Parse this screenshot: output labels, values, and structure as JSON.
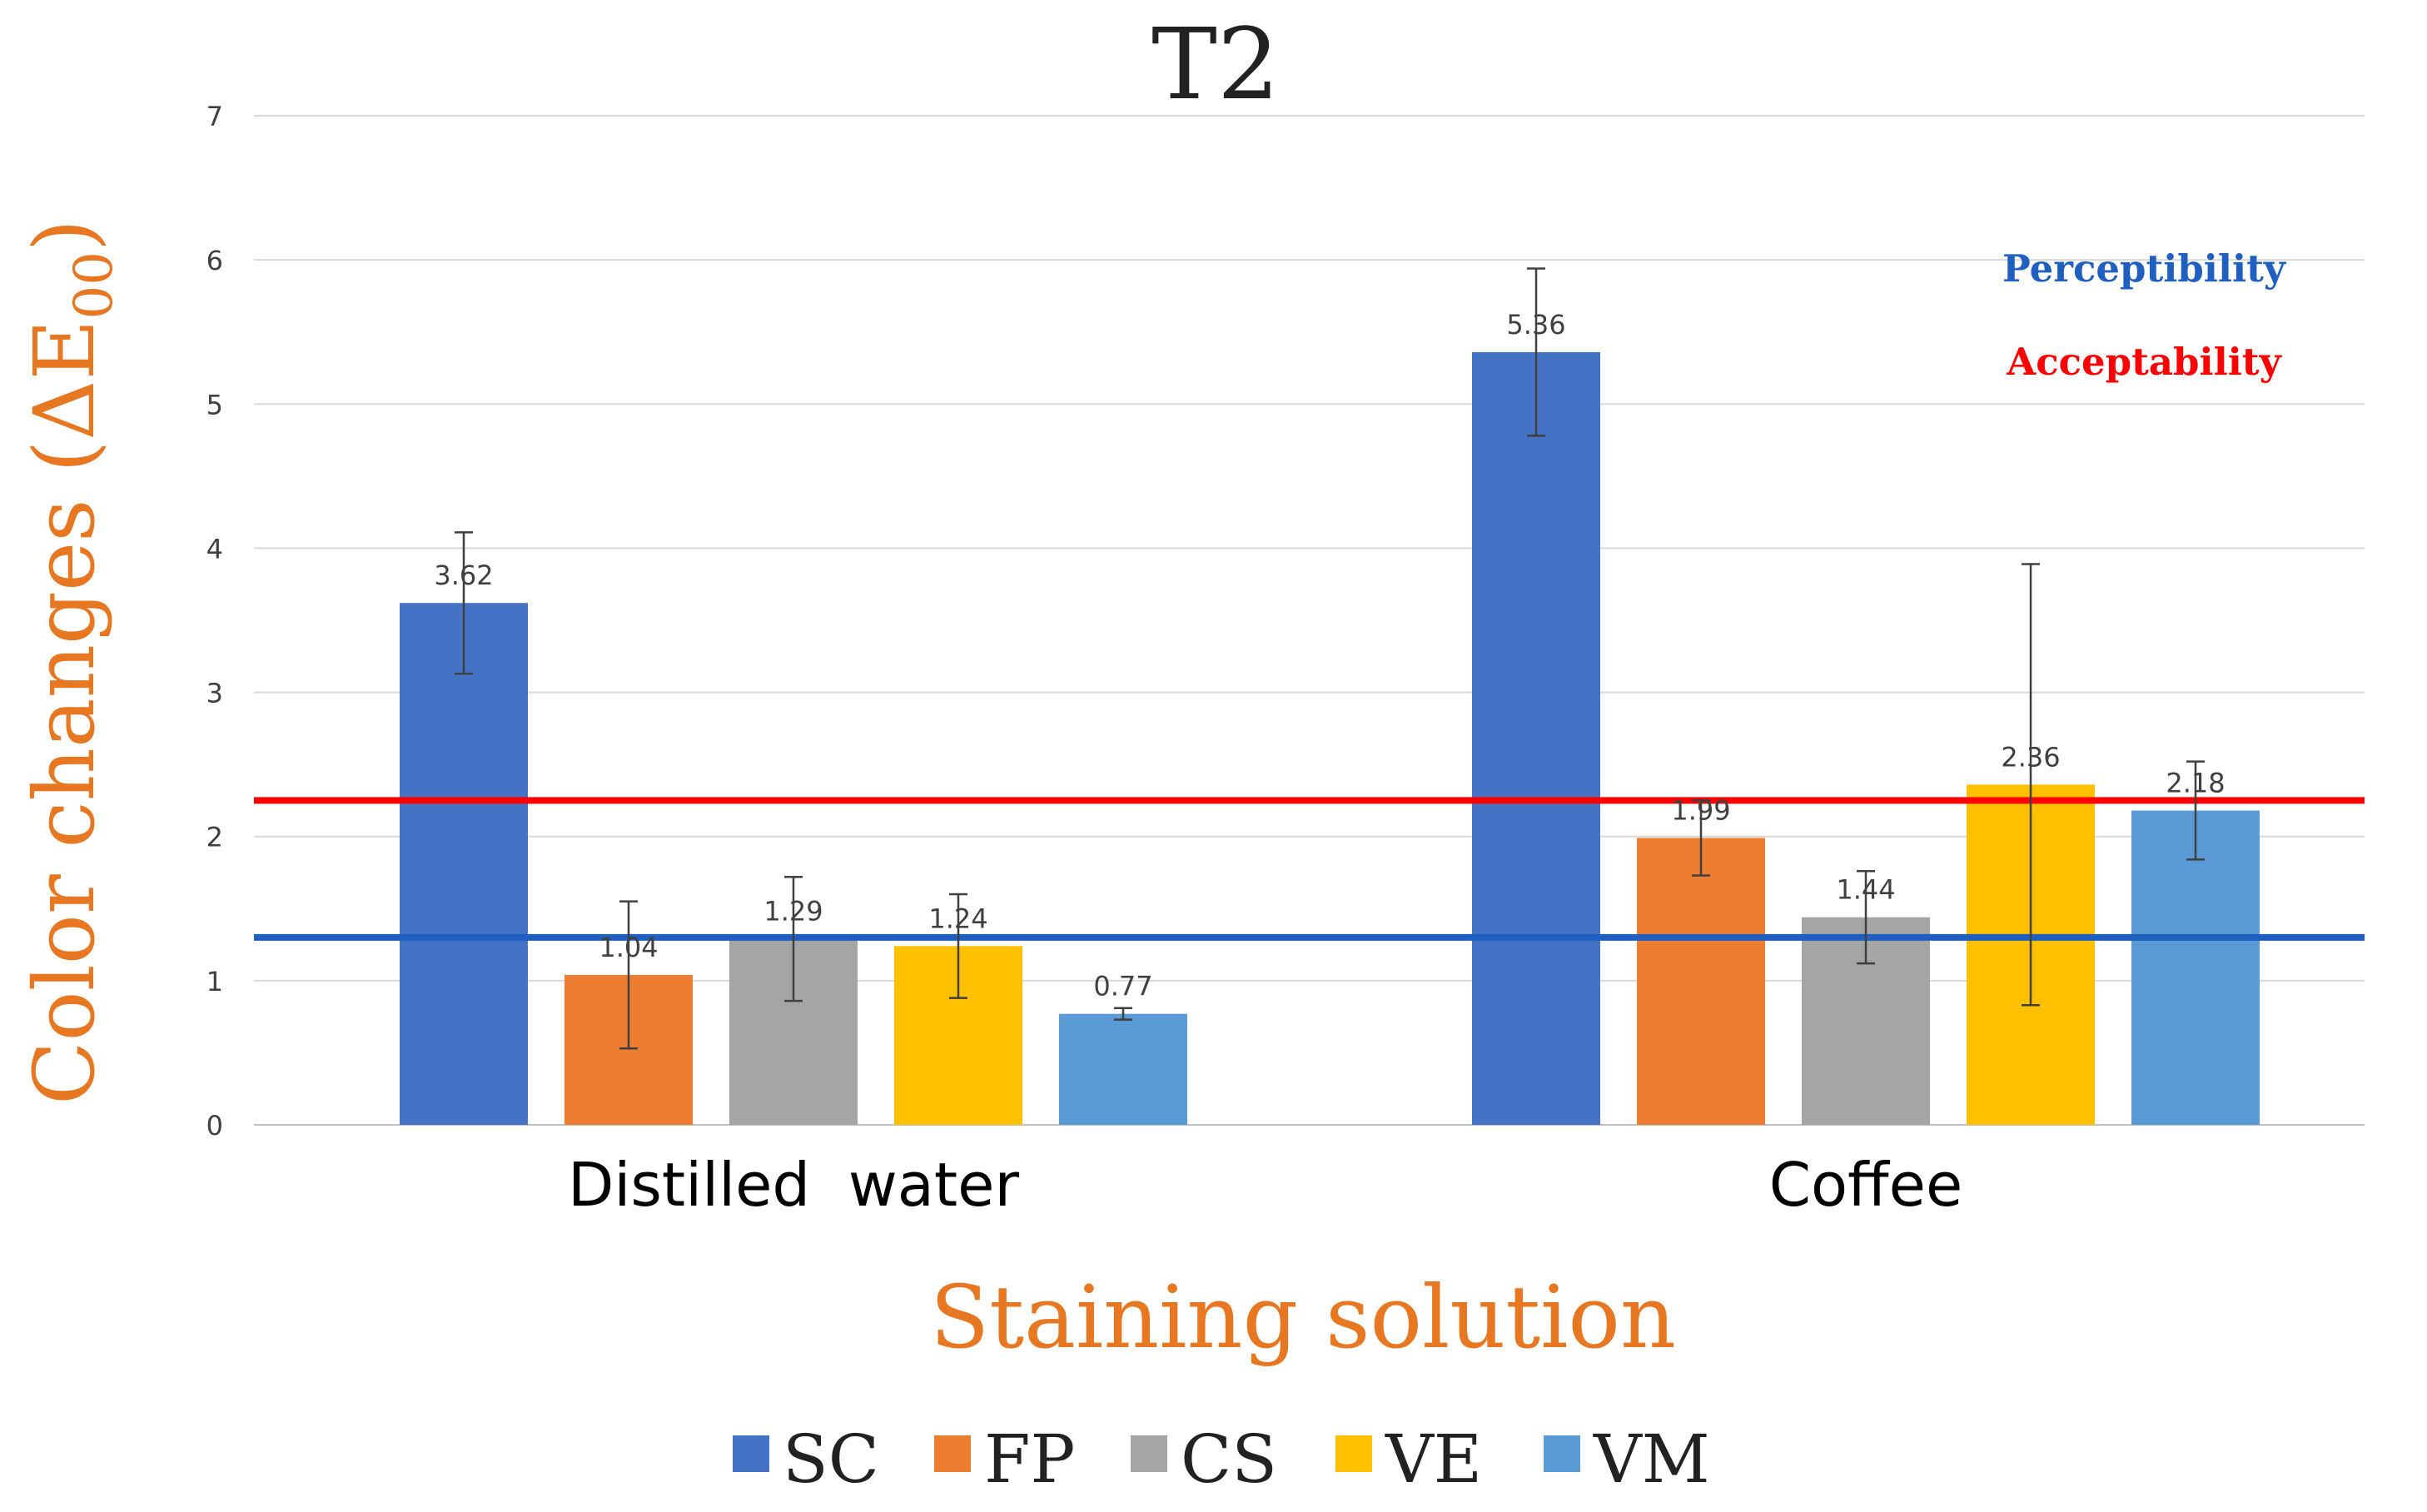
{
  "chart_data": {
    "type": "bar",
    "title": "T2",
    "xlabel": "Staining solution",
    "ylabel_main": "Color changes (ΔE",
    "ylabel_sub": "00",
    "ylabel_close": ")",
    "ylim": [
      0,
      7
    ],
    "yticks": [
      "0",
      "1",
      "2",
      "3",
      "4",
      "5",
      "6",
      "7"
    ],
    "grid": true,
    "categories": [
      "Distilled  water",
      "Coffee"
    ],
    "series": [
      {
        "name": "SC",
        "color": "#4472C4",
        "values": [
          3.62,
          5.36
        ],
        "labels": [
          "3.62",
          "5.36"
        ],
        "errors": [
          0.49,
          0.58
        ]
      },
      {
        "name": "FP",
        "color": "#ED7D31",
        "values": [
          1.04,
          1.99
        ],
        "labels": [
          "1.04",
          "1.99"
        ],
        "errors": [
          0.51,
          0.26
        ]
      },
      {
        "name": "CS",
        "color": "#A5A5A5",
        "values": [
          1.29,
          1.44
        ],
        "labels": [
          "1.29",
          "1.44"
        ],
        "errors": [
          0.43,
          0.32
        ]
      },
      {
        "name": "VE",
        "color": "#FFC000",
        "values": [
          1.24,
          2.36
        ],
        "labels": [
          "1.24",
          "2.36"
        ],
        "errors": [
          0.36,
          1.53
        ]
      },
      {
        "name": "VM",
        "color": "#5B9BD5",
        "values": [
          0.77,
          2.18
        ],
        "labels": [
          "0.77",
          "2.18"
        ],
        "errors": [
          0.04,
          0.34
        ]
      }
    ],
    "reference_lines": [
      {
        "name": "Perceptibility",
        "label": "Perceptibility",
        "value": 1.3,
        "color": "#1F5FBF"
      },
      {
        "name": "Acceptability",
        "label": "Acceptability",
        "value": 2.25,
        "color": "#FF0000"
      }
    ],
    "legend_position": "bottom-center"
  },
  "colors": {
    "axis_label": "#E87722",
    "grid": "#D9D9D9",
    "text": "#000000",
    "tick": "#404040"
  }
}
